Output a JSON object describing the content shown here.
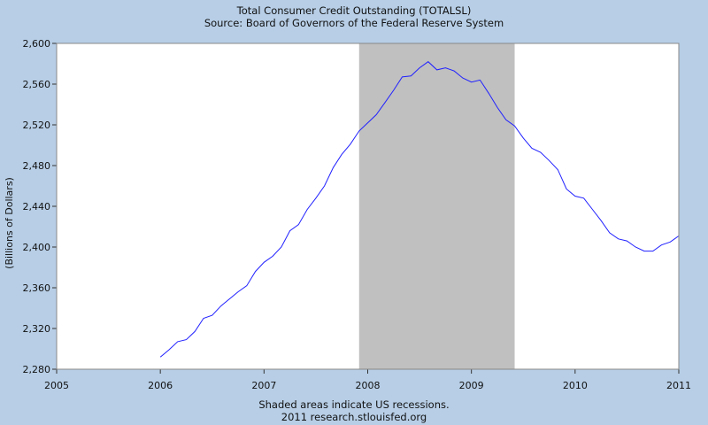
{
  "chart_data": {
    "type": "line",
    "title": "Total Consumer Credit Outstanding (TOTALSL)",
    "subtitle": "Source: Board of Governors of the Federal Reserve System",
    "ylabel": "(Billions of Dollars)",
    "xlabel": "",
    "footer_note": "Shaded areas indicate US recessions.",
    "footer_credit": "2011 research.stlouisfed.org",
    "xlim": [
      2005.0,
      2011.0
    ],
    "ylim": [
      2280,
      2600
    ],
    "x_ticks": [
      "2005",
      "2006",
      "2007",
      "2008",
      "2009",
      "2010",
      "2011"
    ],
    "y_ticks": [
      "2,280",
      "2,320",
      "2,360",
      "2,400",
      "2,440",
      "2,480",
      "2,520",
      "2,560",
      "2,600"
    ],
    "grid": false,
    "legend": "none",
    "line_color": "#2020ff",
    "recession_shading": {
      "start": 2007.917,
      "end": 2009.417,
      "color": "#c0c0c0"
    },
    "series": [
      {
        "x": [
          2006.0,
          2006.083,
          2006.167,
          2006.25,
          2006.333,
          2006.417,
          2006.5,
          2006.583,
          2006.667,
          2006.75,
          2006.833,
          2006.917,
          2007.0,
          2007.083,
          2007.167,
          2007.25,
          2007.333,
          2007.417,
          2007.5,
          2007.583,
          2007.667,
          2007.75,
          2007.833,
          2007.917,
          2008.0,
          2008.083,
          2008.167,
          2008.25,
          2008.333,
          2008.417,
          2008.5,
          2008.583,
          2008.667,
          2008.75,
          2008.833,
          2008.917,
          2009.0,
          2009.083,
          2009.167,
          2009.25,
          2009.333,
          2009.417,
          2009.5,
          2009.583,
          2009.667,
          2009.75,
          2009.833,
          2009.917,
          2010.0,
          2010.083,
          2010.167,
          2010.25,
          2010.333,
          2010.417,
          2010.5,
          2010.583,
          2010.667,
          2010.75,
          2010.833,
          2010.917,
          2011.0
        ],
        "values": [
          2292,
          2299,
          2307,
          2309,
          2317,
          2330,
          2333,
          2342,
          2349,
          2356,
          2362,
          2376,
          2385,
          2391,
          2400,
          2416,
          2422,
          2437,
          2448,
          2460,
          2478,
          2491,
          2501,
          2514,
          2522,
          2530,
          2542,
          2554,
          2567,
          2568,
          2576,
          2582,
          2574,
          2576,
          2573,
          2566,
          2562,
          2564,
          2551,
          2537,
          2525,
          2519,
          2507,
          2497,
          2493,
          2485,
          2476,
          2457,
          2450,
          2448,
          2437,
          2426,
          2414,
          2408,
          2406,
          2400,
          2396,
          2396,
          2402,
          2405,
          2411
        ]
      }
    ]
  }
}
